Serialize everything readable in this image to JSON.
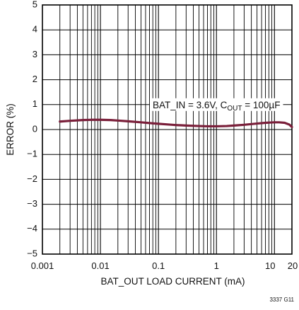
{
  "chart_data": {
    "type": "line",
    "title": "",
    "xlabel": "BAT_OUT LOAD CURRENT (mA)",
    "ylabel": "ERROR (%)",
    "x_scale": "log",
    "xlim": [
      0.001,
      20
    ],
    "ylim": [
      -5,
      5
    ],
    "grid": true,
    "x_ticks": [
      0.001,
      0.01,
      0.1,
      1,
      10,
      20
    ],
    "x_tick_labels": [
      "0.001",
      "0.01",
      "0.1",
      "1",
      "10",
      "20"
    ],
    "y_ticks": [
      -5,
      -4,
      -3,
      -2,
      -1,
      0,
      1,
      2,
      3,
      4,
      5
    ],
    "y_tick_labels": [
      "−5",
      "−4",
      "−3",
      "−2",
      "−1",
      "0",
      "1",
      "2",
      "3",
      "4",
      "5"
    ],
    "annotation": {
      "prefix": "BAT_IN = 3.6V,  C",
      "subscript": "OUT",
      "suffix": " = 100µF",
      "at_x": 1.0,
      "at_y": 1.0
    },
    "series": [
      {
        "color": "#7a1f3a",
        "x": [
          0.002,
          0.003,
          0.005,
          0.007,
          0.01,
          0.015,
          0.02,
          0.03,
          0.05,
          0.07,
          0.1,
          0.15,
          0.2,
          0.3,
          0.5,
          0.7,
          1,
          1.5,
          2,
          3,
          5,
          7,
          10,
          12,
          15,
          18,
          20
        ],
        "y": [
          0.32,
          0.35,
          0.38,
          0.39,
          0.39,
          0.38,
          0.36,
          0.33,
          0.29,
          0.26,
          0.23,
          0.2,
          0.18,
          0.16,
          0.14,
          0.13,
          0.13,
          0.14,
          0.16,
          0.19,
          0.24,
          0.27,
          0.29,
          0.29,
          0.27,
          0.2,
          0.1
        ]
      }
    ]
  },
  "figure_code": "3337 G11"
}
